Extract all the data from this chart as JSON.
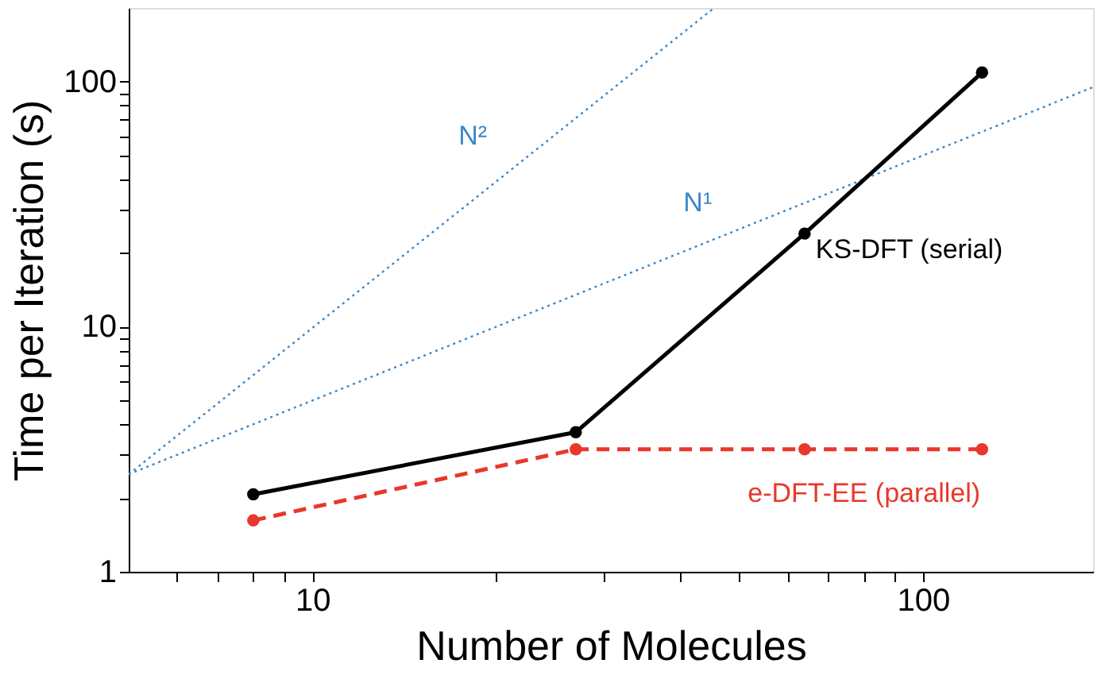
{
  "chart_data": {
    "type": "line",
    "xlabel": "Number of Molecules",
    "ylabel": "Time per Iteration (s)",
    "log": "xy",
    "grid": false,
    "xlim": [
      5,
      190
    ],
    "ylim": [
      1,
      200
    ],
    "xticks": [
      {
        "value": 6,
        "label": null
      },
      {
        "value": 7,
        "label": null
      },
      {
        "value": 8,
        "label": null
      },
      {
        "value": 9,
        "label": null
      },
      10,
      {
        "value": 20,
        "label": null
      },
      {
        "value": 30,
        "label": null
      },
      {
        "value": 40,
        "label": null
      },
      {
        "value": 50,
        "label": null
      },
      {
        "value": 60,
        "label": null
      },
      {
        "value": 70,
        "label": null
      },
      {
        "value": 80,
        "label": null
      },
      {
        "value": 90,
        "label": null
      },
      100
    ],
    "yticks": [
      1,
      {
        "value": 2,
        "label": null
      },
      {
        "value": 3,
        "label": null
      },
      {
        "value": 4,
        "label": null
      },
      {
        "value": 5,
        "label": null
      },
      {
        "value": 6,
        "label": null
      },
      {
        "value": 7,
        "label": null
      },
      {
        "value": 8,
        "label": null
      },
      {
        "value": 9,
        "label": null
      },
      10,
      {
        "value": 20,
        "label": null
      },
      {
        "value": 30,
        "label": null
      },
      {
        "value": 40,
        "label": null
      },
      {
        "value": 50,
        "label": null
      },
      {
        "value": 60,
        "label": null
      },
      {
        "value": 70,
        "label": null
      },
      {
        "value": 80,
        "label": null
      },
      {
        "value": 90,
        "label": null
      },
      100
    ],
    "series": [
      {
        "name": "N²",
        "color": "#3a87c8",
        "x": [
          5,
          45.5
        ],
        "values": [
          2.5,
          200
        ],
        "line_style": "dotted",
        "marker": "none"
      },
      {
        "name": "N¹",
        "color": "#3a87c8",
        "x": [
          5,
          190
        ],
        "values": [
          2.5,
          95
        ],
        "line_style": "dotted",
        "marker": "none"
      },
      {
        "name": "KS-DFT (serial)",
        "color": "#000000",
        "x": [
          8,
          27,
          64,
          125
        ],
        "values": [
          2.07,
          3.71,
          24,
          109
        ],
        "line_style": "solid",
        "marker": "circle"
      },
      {
        "name": "e-DFT-EE (parallel)",
        "color": "#e8382c",
        "x": [
          8,
          27,
          64,
          125
        ],
        "values": [
          1.62,
          3.16,
          3.16,
          3.16
        ],
        "line_style": "dashed",
        "marker": "circle"
      }
    ]
  }
}
